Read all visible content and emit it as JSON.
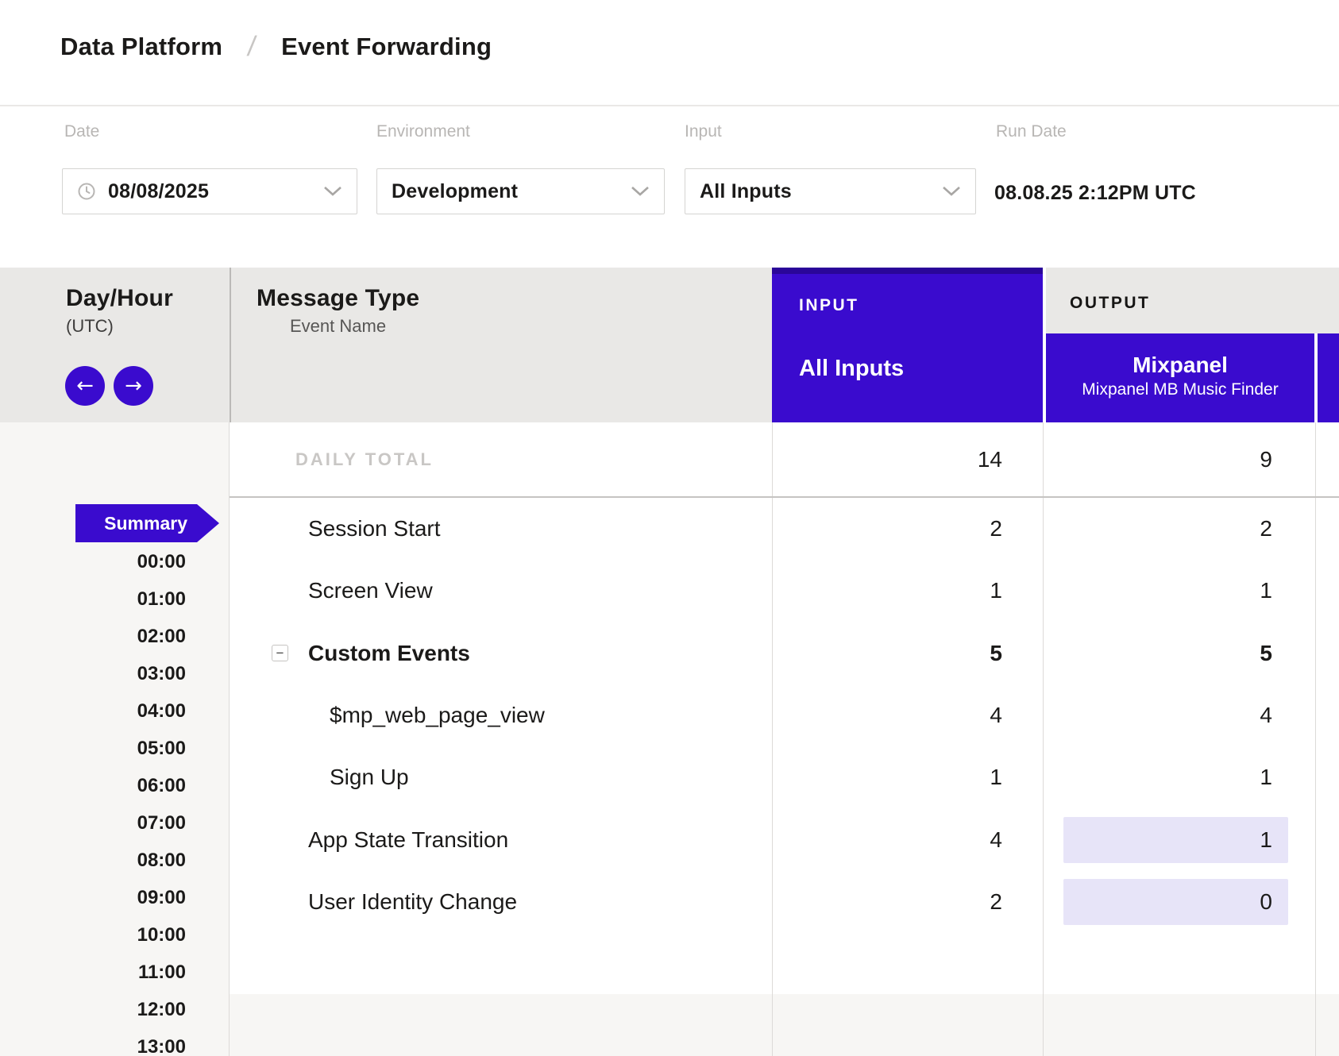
{
  "breadcrumb": {
    "parent": "Data Platform",
    "separator": "/",
    "current": "Event Forwarding"
  },
  "filters": [
    {
      "label": "Date",
      "value": "08/08/2025"
    },
    {
      "label": "Environment",
      "value": "Development"
    },
    {
      "label": "Input",
      "value": "All Inputs"
    },
    {
      "label": "Run Date",
      "value": "08.08.25 2:12PM UTC"
    }
  ],
  "table": {
    "day_hour": {
      "title": "Day/Hour",
      "subtitle": "(UTC)",
      "prev_icon": "←",
      "next_icon": "→",
      "selected_label": "Summary",
      "hours": [
        "00:00",
        "01:00",
        "02:00",
        "03:00",
        "04:00",
        "05:00",
        "06:00",
        "07:00",
        "08:00",
        "09:00",
        "10:00",
        "11:00",
        "12:00",
        "13:00"
      ]
    },
    "message_type": {
      "title": "Message Type",
      "subtitle": "Event Name"
    },
    "input_header": {
      "group_label": "INPUT",
      "column_label": "All Inputs"
    },
    "output_header": {
      "group_label": "OUTPUT",
      "column_title": "Mixpanel",
      "column_subtitle": "Mixpanel MB Music Finder"
    },
    "daily_total": {
      "label": "DAILY TOTAL",
      "input": 14,
      "output": 9
    },
    "collapse_glyph": "−",
    "rows": [
      {
        "label": "Session Start",
        "input": 2,
        "output": 2,
        "indent": 0,
        "bold": false,
        "collapsible": false,
        "output_highlight": false
      },
      {
        "label": "Screen View",
        "input": 1,
        "output": 1,
        "indent": 0,
        "bold": false,
        "collapsible": false,
        "output_highlight": false
      },
      {
        "label": "Custom Events",
        "input": 5,
        "output": 5,
        "indent": 0,
        "bold": true,
        "collapsible": true,
        "output_highlight": false
      },
      {
        "label": "$mp_web_page_view",
        "input": 4,
        "output": 4,
        "indent": 1,
        "bold": false,
        "collapsible": false,
        "output_highlight": false
      },
      {
        "label": "Sign Up",
        "input": 1,
        "output": 1,
        "indent": 1,
        "bold": false,
        "collapsible": false,
        "output_highlight": false
      },
      {
        "label": "App State Transition",
        "input": 4,
        "output": 1,
        "indent": 0,
        "bold": false,
        "collapsible": false,
        "output_highlight": true
      },
      {
        "label": "User Identity Change",
        "input": 2,
        "output": 0,
        "indent": 0,
        "bold": false,
        "collapsible": false,
        "output_highlight": true
      }
    ]
  },
  "colors": {
    "accent": "#3A0BCE",
    "accent_dark": "#2A0699",
    "highlight": "#E7E4F8",
    "header_band": "#E9E8E6",
    "panel": "#F7F6F4"
  }
}
